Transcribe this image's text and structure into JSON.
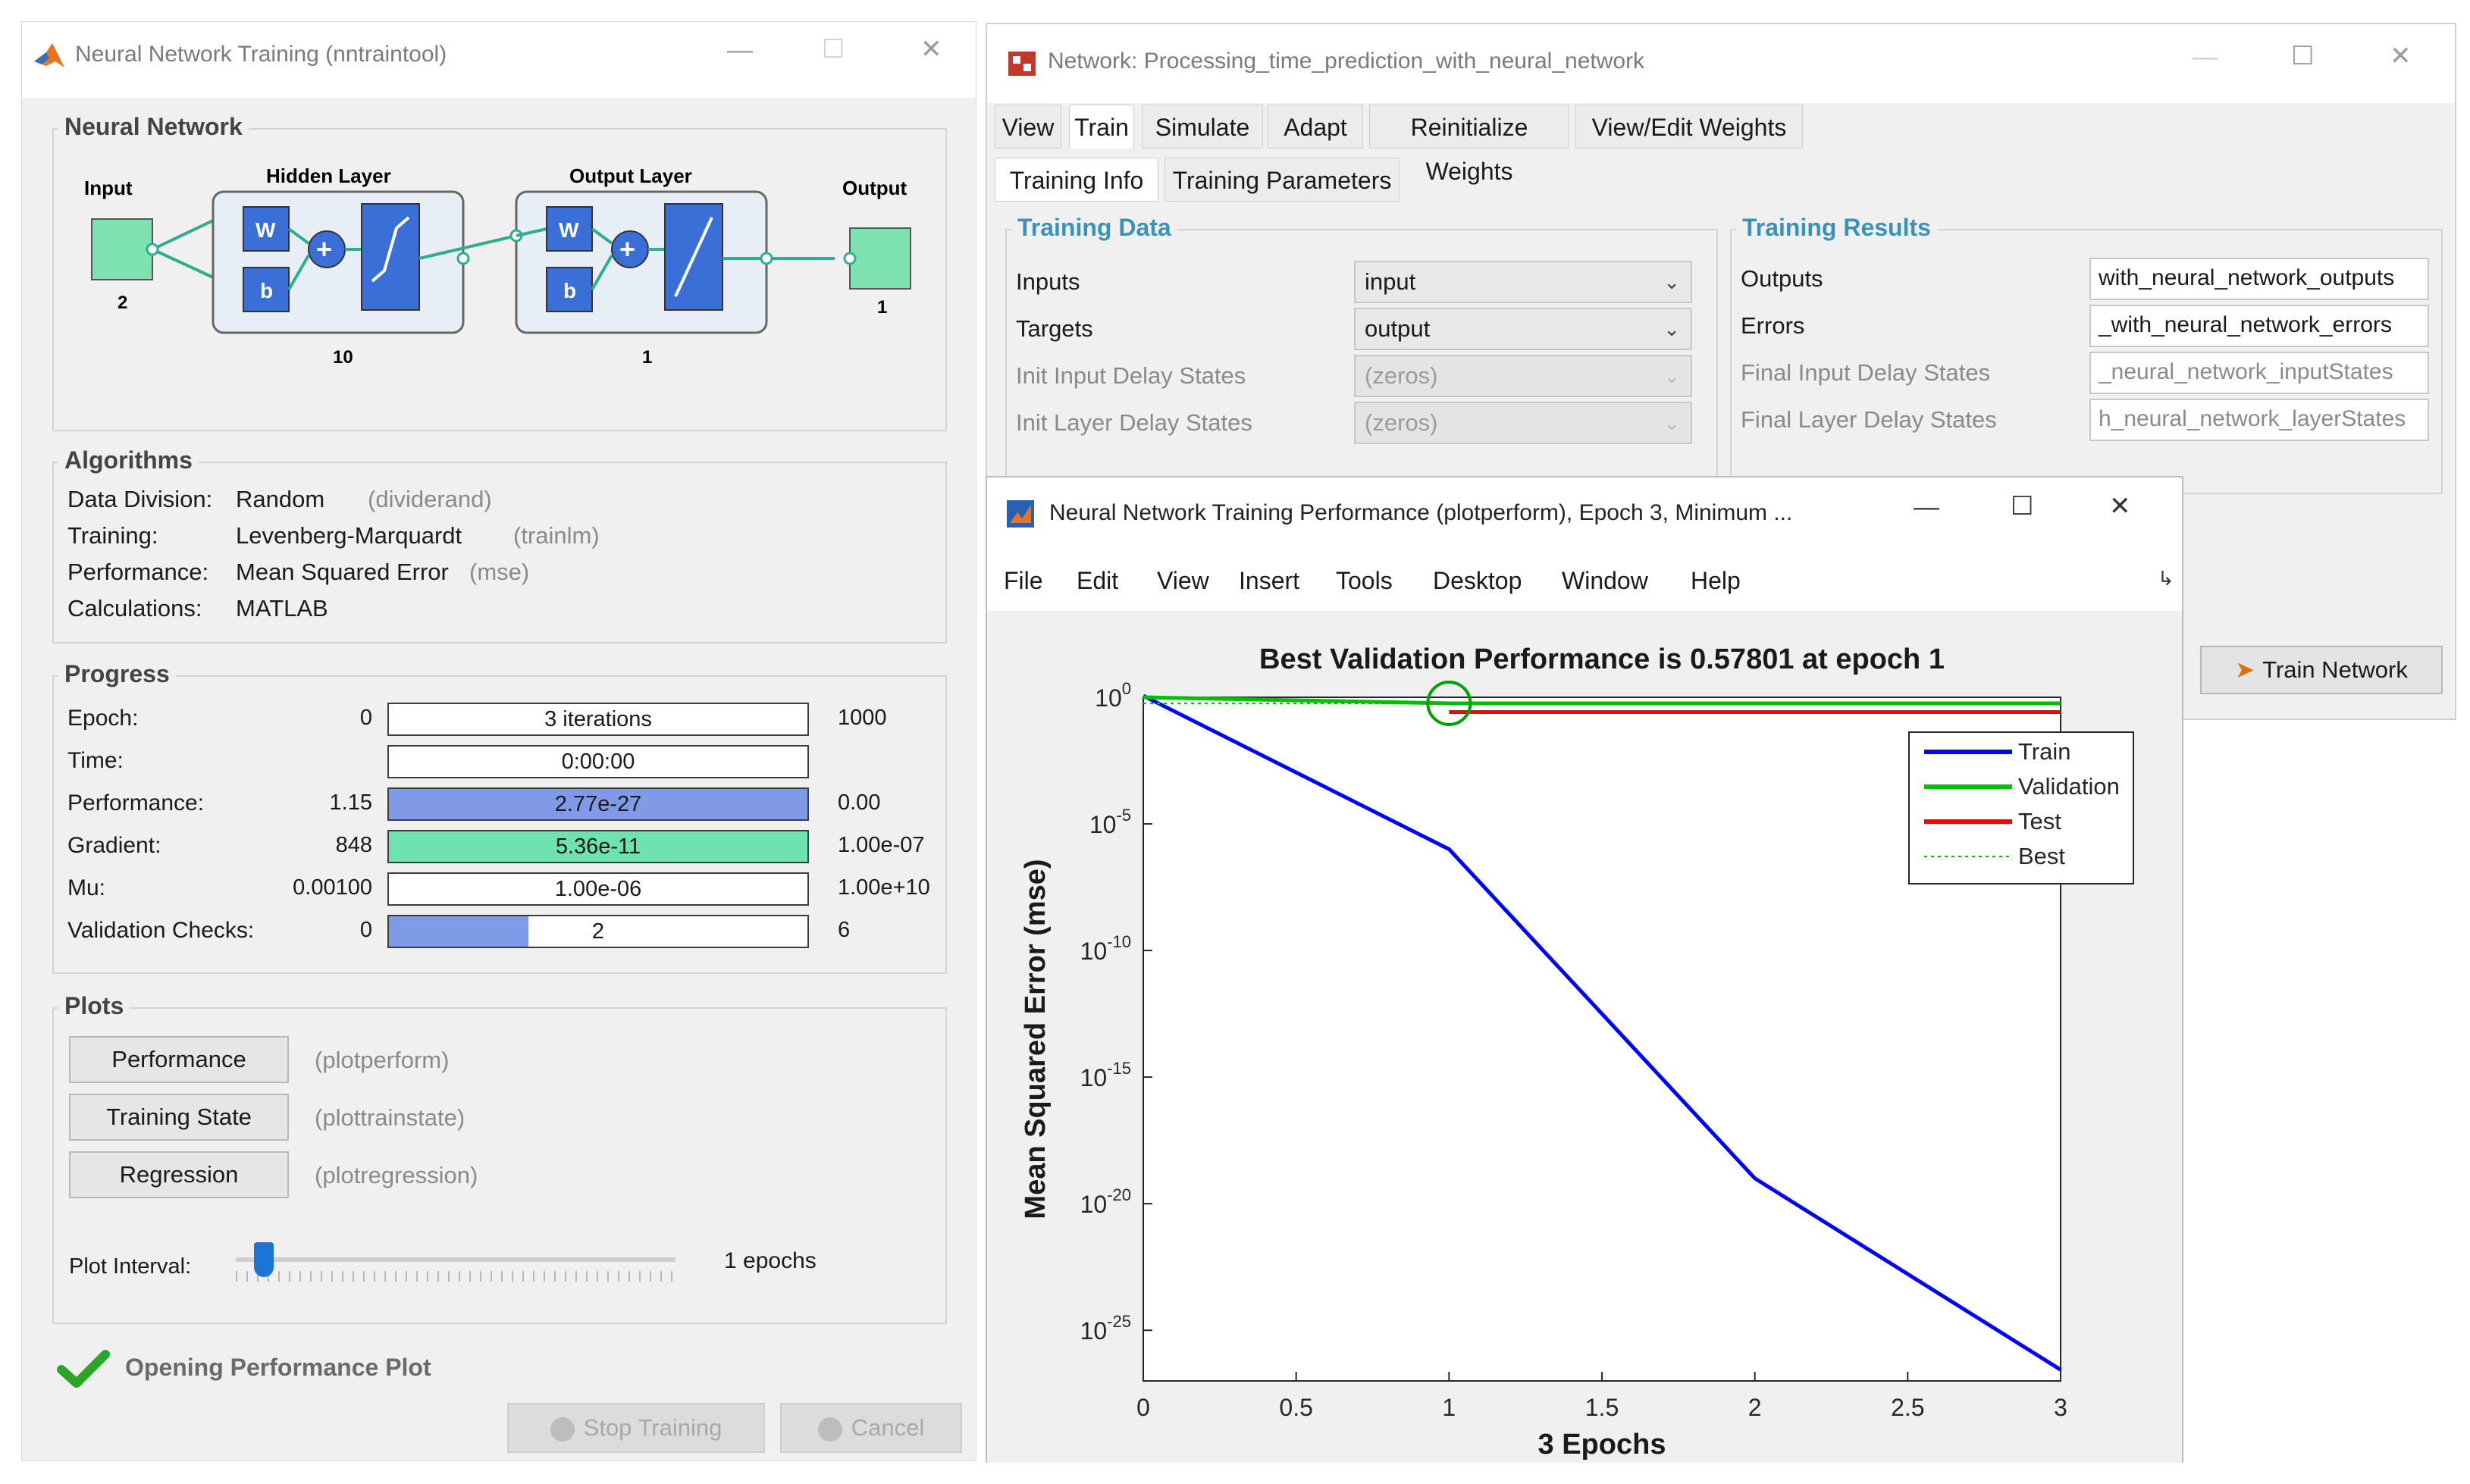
{
  "nntraintool": {
    "title": "Neural Network Training (nntraintool)",
    "neural_network": {
      "section_label": "Neural Network",
      "input_label": "Input",
      "input_size": "2",
      "hidden_label": "Hidden Layer",
      "hidden_size": "10",
      "output_layer_label": "Output Layer",
      "output_layer_size": "1",
      "output_label": "Output",
      "output_size": "1",
      "w": "W",
      "b": "b"
    },
    "algorithms": {
      "section_label": "Algorithms",
      "rows": [
        {
          "label": "Data Division:",
          "value": "Random",
          "note": "(dividerand)"
        },
        {
          "label": "Training:",
          "value": "Levenberg-Marquardt",
          "note": "(trainlm)"
        },
        {
          "label": "Performance:",
          "value": "Mean Squared Error",
          "note": "(mse)"
        },
        {
          "label": "Calculations:",
          "value": "MATLAB",
          "note": ""
        }
      ]
    },
    "progress": {
      "section_label": "Progress",
      "rows": [
        {
          "label": "Epoch:",
          "start": "0",
          "bar": "3 iterations",
          "end": "1000",
          "fill": 0.0,
          "color": "#ffffff"
        },
        {
          "label": "Time:",
          "start": "",
          "bar": "0:00:00",
          "end": "",
          "fill": 0.0,
          "color": "#ffffff"
        },
        {
          "label": "Performance:",
          "start": "1.15",
          "bar": "2.77e-27",
          "end": "0.00",
          "fill": 1.0,
          "color": "#7f9be8"
        },
        {
          "label": "Gradient:",
          "start": "848",
          "bar": "5.36e-11",
          "end": "1.00e-07",
          "fill": 1.0,
          "color": "#6fe3ad"
        },
        {
          "label": "Mu:",
          "start": "0.00100",
          "bar": "1.00e-06",
          "end": "1.00e+10",
          "fill": 0.0,
          "color": "#ffffff"
        },
        {
          "label": "Validation Checks:",
          "start": "0",
          "bar": "2",
          "end": "6",
          "fill": 0.333,
          "color": "#7f9be8"
        }
      ]
    },
    "plots": {
      "section_label": "Plots",
      "buttons": [
        {
          "label": "Performance",
          "note": "(plotperform)"
        },
        {
          "label": "Training State",
          "note": "(plottrainstate)"
        },
        {
          "label": "Regression",
          "note": "(plotregression)"
        }
      ],
      "interval_label": "Plot Interval:",
      "interval_value": "1 epochs"
    },
    "status": "Opening Performance Plot",
    "stop_label": "Stop Training",
    "cancel_label": "Cancel"
  },
  "network_window": {
    "title": "Network: Processing_time_prediction_with_neural_network",
    "menu": [
      "View",
      "Train",
      "Simulate",
      "Adapt",
      "Reinitialize Weights",
      "View/Edit Weights"
    ],
    "subtabs": [
      "Training Info",
      "Training Parameters"
    ],
    "training_data": {
      "label": "Training Data",
      "rows": [
        {
          "label": "Inputs",
          "value": "input",
          "disabled": false
        },
        {
          "label": "Targets",
          "value": "output",
          "disabled": false
        },
        {
          "label": "Init Input Delay States",
          "value": "(zeros)",
          "disabled": true
        },
        {
          "label": "Init Layer Delay States",
          "value": "(zeros)",
          "disabled": true
        }
      ]
    },
    "training_results": {
      "label": "Training Results",
      "rows": [
        {
          "label": "Outputs",
          "value": "with_neural_network_outputs",
          "disabled": false
        },
        {
          "label": "Errors",
          "value": "_with_neural_network_errors",
          "disabled": false
        },
        {
          "label": "Final Input Delay States",
          "value": "_neural_network_inputStates",
          "disabled": true
        },
        {
          "label": "Final Layer Delay States",
          "value": "h_neural_network_layerStates",
          "disabled": true
        }
      ]
    },
    "train_button": "Train Network"
  },
  "perf_window": {
    "title": "Neural Network Training Performance (plotperform), Epoch 3, Minimum ...",
    "menu": [
      "File",
      "Edit",
      "View",
      "Insert",
      "Tools",
      "Desktop",
      "Window",
      "Help"
    ]
  },
  "chart_data": {
    "type": "line",
    "title": "Best Validation Performance is 0.57801 at epoch 1",
    "xlabel": "3 Epochs",
    "ylabel": "Mean Squared Error  (mse)",
    "yscale": "log",
    "xlim": [
      0,
      3
    ],
    "ylim": [
      1e-27,
      1
    ],
    "xticks": [
      "0",
      "0.5",
      "1",
      "1.5",
      "2",
      "2.5",
      "3"
    ],
    "yticks": [
      {
        "base": "10",
        "exp": "0"
      },
      {
        "base": "10",
        "exp": "-5"
      },
      {
        "base": "10",
        "exp": "-10"
      },
      {
        "base": "10",
        "exp": "-15"
      },
      {
        "base": "10",
        "exp": "-20"
      },
      {
        "base": "10",
        "exp": "-25"
      }
    ],
    "series": [
      {
        "name": "Train",
        "color": "#0000ff",
        "x": [
          0,
          1,
          2,
          3
        ],
        "y": [
          1.15,
          1e-06,
          1e-19,
          2.77e-27
        ]
      },
      {
        "name": "Validation",
        "color": "#00c000",
        "x": [
          0,
          1,
          2,
          3
        ],
        "y": [
          1.0,
          0.578,
          0.578,
          0.578
        ]
      },
      {
        "name": "Test",
        "color": "#ff0000",
        "x": [
          1,
          2,
          3
        ],
        "y": [
          0.26,
          0.26,
          0.26
        ]
      },
      {
        "name": "Best",
        "color": "#00c000",
        "x": [
          0,
          3
        ],
        "y": [
          0.578,
          0.578
        ],
        "dotted": true
      }
    ],
    "best_point": {
      "x": 1,
      "y": 0.578
    },
    "legend_placement": "top-right",
    "grid": false
  }
}
